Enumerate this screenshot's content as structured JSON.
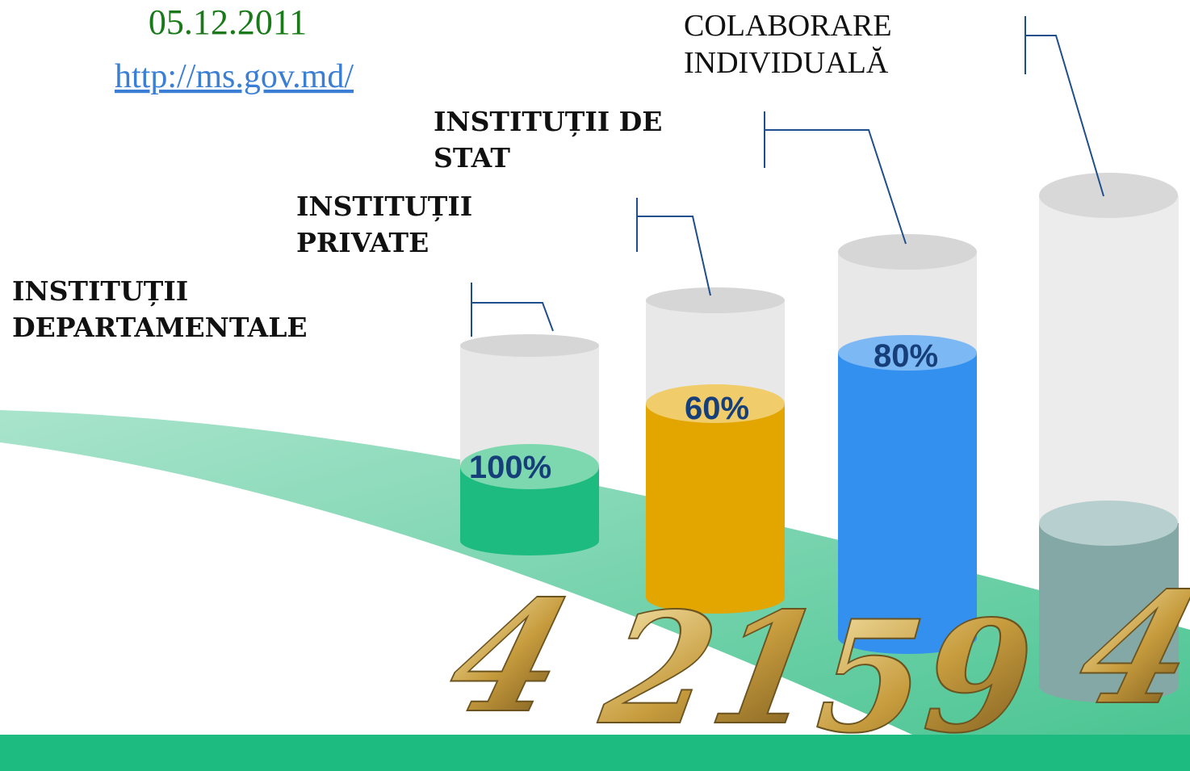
{
  "header": {
    "date": "05.12.2011",
    "link": "http://ms.gov.md/"
  },
  "columns": [
    {
      "label": [
        "INSTITUȚII",
        "DEPARTAMENTALE"
      ],
      "percent": "100%",
      "count": "4"
    },
    {
      "label": [
        "INSTITUȚII",
        "PRIVATE"
      ],
      "percent": "60%",
      "count": "21"
    },
    {
      "label": [
        "INSTITUȚII DE",
        "STAT"
      ],
      "percent": "80%",
      "count": "59"
    },
    {
      "label": [
        "COLABORARE",
        "INDIVIDUALĂ"
      ],
      "count": "4"
    }
  ]
}
